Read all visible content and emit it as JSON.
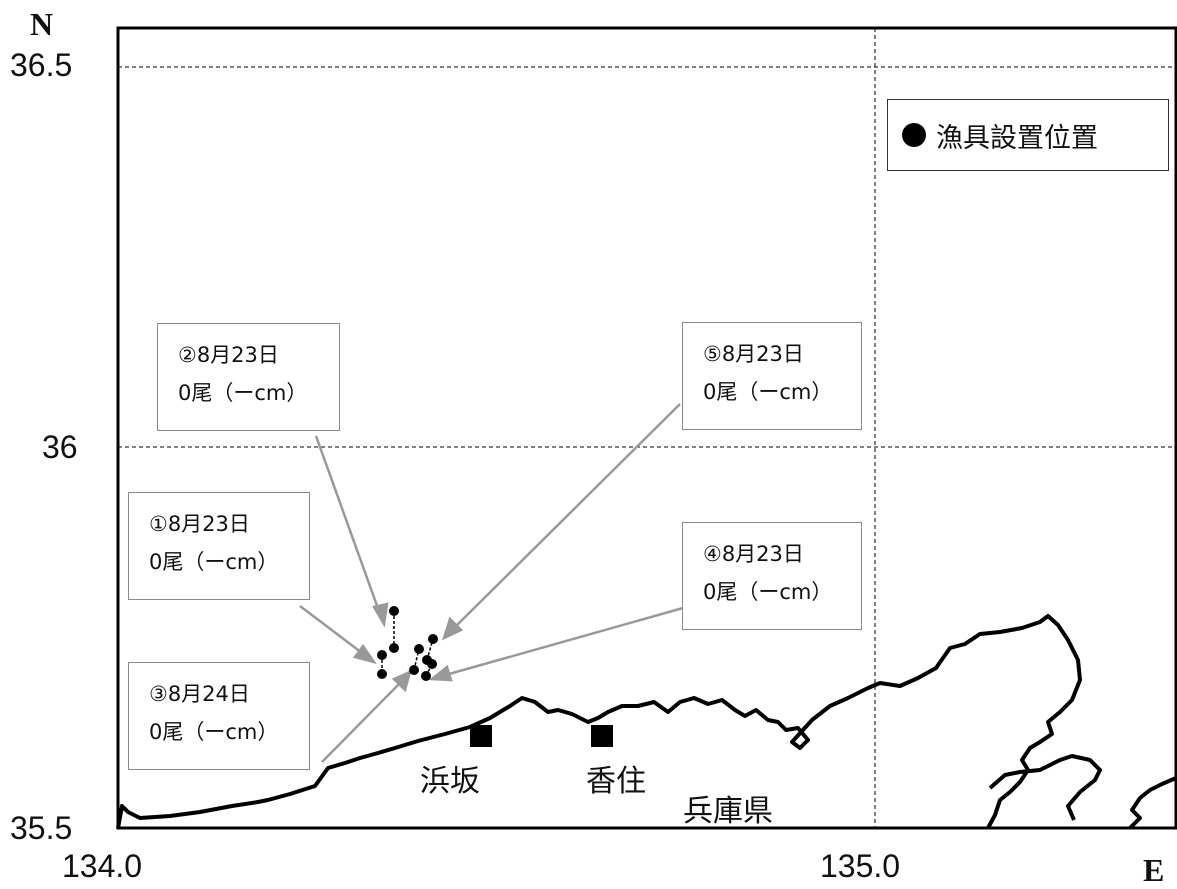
{
  "axes": {
    "north_label": "N",
    "east_label": "E",
    "lat_ticks": [
      "36.5",
      "36",
      "35.5"
    ],
    "lon_ticks": [
      "134.0",
      "135.0"
    ]
  },
  "legend": {
    "label": "漁具設置位置"
  },
  "stations": [
    {
      "date": "①8月23日",
      "catch": "0尾（ーcm）"
    },
    {
      "date": "②8月23日",
      "catch": "0尾（ーcm）"
    },
    {
      "date": "③8月24日",
      "catch": "0尾（ーcm）"
    },
    {
      "date": "④8月23日",
      "catch": "0尾（ーcm）"
    },
    {
      "date": "⑤8月23日",
      "catch": "0尾（ーcm）"
    }
  ],
  "places": {
    "hamasaka": "浜坂",
    "kasumi": "香住",
    "prefecture": "兵庫県"
  },
  "colors": {
    "coast": "#000000",
    "grid": "#000000",
    "arrow": "#999999",
    "box_border": "#8a8a8a"
  }
}
